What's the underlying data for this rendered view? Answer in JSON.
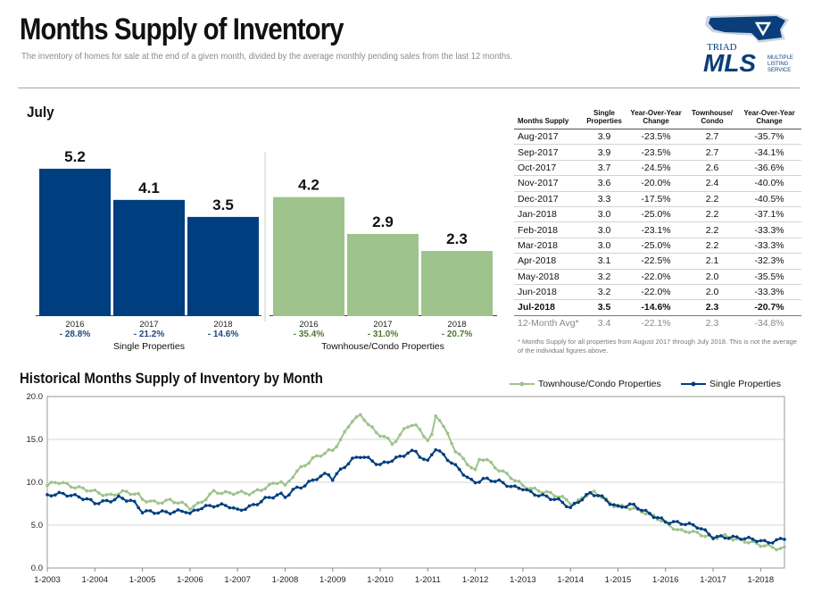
{
  "header": {
    "title": "Months Supply of Inventory",
    "subtitle": "The inventory of homes for sale at the end of a given month, divided by the average monthly pending sales from the last 12 months."
  },
  "logo": {
    "top_text": "TRIAD",
    "main_text": "MLS",
    "side_lines": [
      "MULTIPLE",
      "LISTING",
      "SERVICE"
    ]
  },
  "section_july": {
    "label": "July"
  },
  "chart_data": [
    {
      "type": "bar",
      "groups": [
        {
          "name": "Single Properties",
          "color": "#003f7f",
          "categories": [
            "2016",
            "2017",
            "2018"
          ],
          "values": [
            5.2,
            4.1,
            3.5
          ],
          "changes": [
            "- 28.8%",
            "- 21.2%",
            "- 14.6%"
          ]
        },
        {
          "name": "Townhouse/Condo Properties",
          "color": "#9ec38c",
          "categories": [
            "2016",
            "2017",
            "2018"
          ],
          "values": [
            4.2,
            2.9,
            2.3
          ],
          "changes": [
            "- 35.4%",
            "- 31.0%",
            "- 20.7%"
          ]
        }
      ],
      "ylim": [
        0,
        6.3
      ],
      "change_color": "#1f497d",
      "change_color_condo": "#4a7a2e"
    },
    {
      "type": "line",
      "title": "Historical Months Supply of Inventory by Month",
      "ylim": [
        0,
        20
      ],
      "yticks": [
        "0.0",
        "5.0",
        "10.0",
        "15.0",
        "20.0"
      ],
      "xticks": [
        "1-2003",
        "1-2004",
        "1-2005",
        "1-2006",
        "1-2007",
        "1-2008",
        "1-2009",
        "1-2010",
        "1-2011",
        "1-2012",
        "1-2013",
        "1-2014",
        "1-2015",
        "1-2016",
        "1-2017",
        "1-2018"
      ],
      "x_start_year": 2003,
      "x_end_year": 2018.5,
      "grid": true,
      "legend_position": "top-right",
      "series": [
        {
          "name": "Townhouse/Condo Properties",
          "color": "#9ec38c",
          "anchors": [
            [
              2003.0,
              9.6
            ],
            [
              2003.2,
              10.1
            ],
            [
              2003.6,
              9.4
            ],
            [
              2003.8,
              9.2
            ],
            [
              2004.0,
              8.9
            ],
            [
              2004.3,
              8.4
            ],
            [
              2004.6,
              8.9
            ],
            [
              2004.9,
              8.6
            ],
            [
              2005.0,
              8.0
            ],
            [
              2005.3,
              7.6
            ],
            [
              2005.6,
              7.9
            ],
            [
              2005.9,
              7.4
            ],
            [
              2006.0,
              7.0
            ],
            [
              2006.2,
              7.5
            ],
            [
              2006.5,
              8.9
            ],
            [
              2006.8,
              8.7
            ],
            [
              2007.0,
              8.8
            ],
            [
              2007.3,
              8.7
            ],
            [
              2007.6,
              9.4
            ],
            [
              2007.9,
              10.2
            ],
            [
              2008.0,
              9.5
            ],
            [
              2008.2,
              11.0
            ],
            [
              2008.3,
              11.5
            ],
            [
              2008.6,
              12.8
            ],
            [
              2008.9,
              13.6
            ],
            [
              2009.0,
              13.7
            ],
            [
              2009.2,
              15.2
            ],
            [
              2009.4,
              17.2
            ],
            [
              2009.6,
              17.8
            ],
            [
              2009.8,
              16.5
            ],
            [
              2009.9,
              15.8
            ],
            [
              2010.1,
              15.3
            ],
            [
              2010.25,
              14.5
            ],
            [
              2010.4,
              15.3
            ],
            [
              2010.55,
              16.5
            ],
            [
              2010.7,
              16.8
            ],
            [
              2010.85,
              16.0
            ],
            [
              2011.0,
              14.9
            ],
            [
              2011.1,
              15.5
            ],
            [
              2011.18,
              18.2
            ],
            [
              2011.3,
              16.8
            ],
            [
              2011.45,
              15.2
            ],
            [
              2011.6,
              13.5
            ],
            [
              2011.8,
              12.4
            ],
            [
              2012.0,
              11.3
            ],
            [
              2012.1,
              12.9
            ],
            [
              2012.25,
              12.6
            ],
            [
              2012.4,
              11.8
            ],
            [
              2012.7,
              10.8
            ],
            [
              2013.0,
              9.6
            ],
            [
              2013.2,
              9.2
            ],
            [
              2013.5,
              8.8
            ],
            [
              2013.8,
              8.3
            ],
            [
              2014.0,
              7.6
            ],
            [
              2014.1,
              7.4
            ],
            [
              2014.3,
              8.5
            ],
            [
              2014.5,
              8.8
            ],
            [
              2014.7,
              8.2
            ],
            [
              2014.85,
              7.4
            ],
            [
              2015.0,
              7.2
            ],
            [
              2015.3,
              7.0
            ],
            [
              2015.5,
              6.6
            ],
            [
              2015.7,
              6.2
            ],
            [
              2015.9,
              5.6
            ],
            [
              2016.0,
              5.2
            ],
            [
              2016.3,
              4.3
            ],
            [
              2016.5,
              4.3
            ],
            [
              2016.7,
              4.0
            ],
            [
              2017.0,
              3.5
            ],
            [
              2017.2,
              3.8
            ],
            [
              2017.5,
              3.3
            ],
            [
              2017.8,
              3.0
            ],
            [
              2018.0,
              2.7
            ],
            [
              2018.2,
              2.5
            ],
            [
              2018.4,
              2.2
            ],
            [
              2018.5,
              2.3
            ]
          ]
        },
        {
          "name": "Single Properties",
          "color": "#003f7f",
          "anchors": [
            [
              2003.0,
              8.4
            ],
            [
              2003.2,
              8.7
            ],
            [
              2003.5,
              8.5
            ],
            [
              2003.8,
              8.1
            ],
            [
              2004.0,
              7.6
            ],
            [
              2004.3,
              7.8
            ],
            [
              2004.5,
              8.2
            ],
            [
              2004.8,
              7.8
            ],
            [
              2005.0,
              6.6
            ],
            [
              2005.3,
              6.5
            ],
            [
              2005.6,
              6.5
            ],
            [
              2005.9,
              6.7
            ],
            [
              2006.0,
              6.3
            ],
            [
              2006.2,
              7.0
            ],
            [
              2006.5,
              7.3
            ],
            [
              2006.8,
              7.3
            ],
            [
              2007.0,
              6.7
            ],
            [
              2007.3,
              7.2
            ],
            [
              2007.6,
              8.1
            ],
            [
              2007.9,
              8.6
            ],
            [
              2008.0,
              8.3
            ],
            [
              2008.2,
              9.2
            ],
            [
              2008.4,
              9.6
            ],
            [
              2008.7,
              10.6
            ],
            [
              2008.9,
              11.0
            ],
            [
              2009.0,
              10.4
            ],
            [
              2009.2,
              11.6
            ],
            [
              2009.4,
              12.6
            ],
            [
              2009.6,
              13.1
            ],
            [
              2009.8,
              12.6
            ],
            [
              2010.0,
              12.0
            ],
            [
              2010.2,
              12.5
            ],
            [
              2010.4,
              12.9
            ],
            [
              2010.6,
              13.5
            ],
            [
              2010.75,
              13.6
            ],
            [
              2010.9,
              12.7
            ],
            [
              2011.0,
              12.4
            ],
            [
              2011.15,
              14.0
            ],
            [
              2011.3,
              13.3
            ],
            [
              2011.5,
              12.3
            ],
            [
              2011.7,
              11.3
            ],
            [
              2011.9,
              10.2
            ],
            [
              2012.0,
              10.0
            ],
            [
              2012.2,
              10.4
            ],
            [
              2012.5,
              10.1
            ],
            [
              2012.8,
              9.4
            ],
            [
              2013.0,
              9.3
            ],
            [
              2013.2,
              8.7
            ],
            [
              2013.5,
              8.3
            ],
            [
              2013.8,
              7.8
            ],
            [
              2014.0,
              7.0
            ],
            [
              2014.2,
              7.9
            ],
            [
              2014.4,
              8.7
            ],
            [
              2014.6,
              8.5
            ],
            [
              2014.8,
              7.7
            ],
            [
              2015.0,
              7.1
            ],
            [
              2015.3,
              7.4
            ],
            [
              2015.5,
              6.8
            ],
            [
              2015.7,
              6.2
            ],
            [
              2015.9,
              5.7
            ],
            [
              2016.0,
              5.4
            ],
            [
              2016.4,
              5.2
            ],
            [
              2016.7,
              4.8
            ],
            [
              2016.9,
              4.0
            ],
            [
              2017.0,
              3.6
            ],
            [
              2017.3,
              3.6
            ],
            [
              2017.6,
              3.5
            ],
            [
              2017.9,
              3.3
            ],
            [
              2018.1,
              3.0
            ],
            [
              2018.3,
              3.1
            ],
            [
              2018.5,
              3.5
            ]
          ]
        }
      ]
    }
  ],
  "table": {
    "headers": [
      "Months Supply",
      "Single Properties",
      "Year-Over-Year Change",
      "Townhouse/ Condo",
      "Year-Over-Year Change"
    ],
    "rows": [
      [
        "Aug-2017",
        "3.9",
        "-23.5%",
        "2.7",
        "-35.7%"
      ],
      [
        "Sep-2017",
        "3.9",
        "-23.5%",
        "2.7",
        "-34.1%"
      ],
      [
        "Oct-2017",
        "3.7",
        "-24.5%",
        "2.6",
        "-36.6%"
      ],
      [
        "Nov-2017",
        "3.6",
        "-20.0%",
        "2.4",
        "-40.0%"
      ],
      [
        "Dec-2017",
        "3.3",
        "-17.5%",
        "2.2",
        "-40.5%"
      ],
      [
        "Jan-2018",
        "3.0",
        "-25.0%",
        "2.2",
        "-37.1%"
      ],
      [
        "Feb-2018",
        "3.0",
        "-23.1%",
        "2.2",
        "-33.3%"
      ],
      [
        "Mar-2018",
        "3.0",
        "-25.0%",
        "2.2",
        "-33.3%"
      ],
      [
        "Apr-2018",
        "3.1",
        "-22.5%",
        "2.1",
        "-32.3%"
      ],
      [
        "May-2018",
        "3.2",
        "-22.0%",
        "2.0",
        "-35.5%"
      ],
      [
        "Jun-2018",
        "3.2",
        "-22.0%",
        "2.0",
        "-33.3%"
      ],
      [
        "Jul-2018",
        "3.5",
        "-14.6%",
        "2.3",
        "-20.7%"
      ]
    ],
    "average_row": [
      "12-Month Avg*",
      "3.4",
      "-22.1%",
      "2.3",
      "-34.8%"
    ],
    "footnote": "* Months Supply for all properties from August 2017 through July 2018. This is not the average of the individual figures above."
  },
  "legend": {
    "condo_label": "Townhouse/Condo Properties",
    "single_label": "Single Properties"
  }
}
